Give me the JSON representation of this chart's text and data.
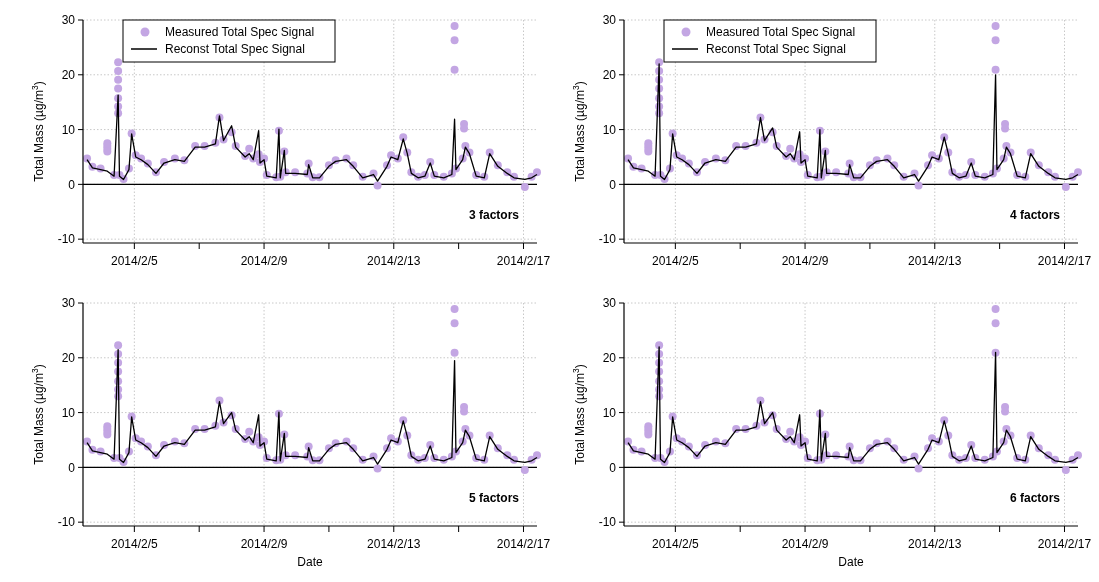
{
  "chart_data": [
    {
      "type": "line",
      "ylabel": "Total Mass (µg/m$^{3}$)",
      "annotations": [
        "3 factors"
      ],
      "legend": "top left",
      "grid": true,
      "xlim": [
        "2014-02-03T10:00",
        "2014-02-17T10:00"
      ],
      "ylim": [
        -10.7,
        30
      ],
      "yticks": [
        -10,
        0,
        10,
        20,
        30
      ],
      "xticks": [
        {
          "value": "2014-02-05",
          "label": "2014/2/5"
        },
        {
          "value": "2014-02-07",
          "label": null
        },
        {
          "value": "2014-02-09",
          "label": "2014/2/9"
        },
        {
          "value": "2014-02-11",
          "label": null
        },
        {
          "value": "2014-02-13",
          "label": "2014/2/13"
        },
        {
          "value": "2014-02-15",
          "label": null
        },
        {
          "value": "2014-02-17",
          "label": "2014/2/17"
        }
      ],
      "ref_lines": [
        {
          "axis": "y",
          "value": 0,
          "color": "#000000"
        }
      ],
      "x": [
        "2014-02-03T13:00",
        "2014-02-03T17:00",
        "2014-02-03T23:00",
        "2014-02-04T04:00",
        "2014-02-04T09:00",
        "2014-02-04T12:00",
        "2014-02-04T13:00",
        "2014-02-04T16:00",
        "2014-02-04T20:00",
        "2014-02-04T22:00",
        "2014-02-05T01:00",
        "2014-02-05T05:00",
        "2014-02-05T10:00",
        "2014-02-05T16:00",
        "2014-02-05T22:00",
        "2014-02-06T06:00",
        "2014-02-06T13:00",
        "2014-02-06T21:00",
        "2014-02-07T04:00",
        "2014-02-07T12:00",
        "2014-02-07T15:00",
        "2014-02-07T18:00",
        "2014-02-08T00:00",
        "2014-02-08T03:00",
        "2014-02-08T10:00",
        "2014-02-08T13:00",
        "2014-02-08T16:00",
        "2014-02-08T20:00",
        "2014-02-08T21:00",
        "2014-02-09T00:00",
        "2014-02-09T02:00",
        "2014-02-09T09:00",
        "2014-02-09T11:00",
        "2014-02-09T12:00",
        "2014-02-09T15:00",
        "2014-02-09T16:00",
        "2014-02-09T23:00",
        "2014-02-10T08:00",
        "2014-02-10T09:00",
        "2014-02-10T12:00",
        "2014-02-10T17:00",
        "2014-02-11T00:00",
        "2014-02-11T05:00",
        "2014-02-11T13:00",
        "2014-02-11T18:00",
        "2014-02-12T01:00",
        "2014-02-12T09:00",
        "2014-02-12T12:00",
        "2014-02-12T19:00",
        "2014-02-12T22:00",
        "2014-02-13T03:00",
        "2014-02-13T07:00",
        "2014-02-13T10:00",
        "2014-02-13T13:00",
        "2014-02-13T18:00",
        "2014-02-13T23:00",
        "2014-02-14T03:00",
        "2014-02-14T06:00",
        "2014-02-14T13:00",
        "2014-02-14T19:00",
        "2014-02-14T21:00",
        "2014-02-14T22:00",
        "2014-02-15T03:00",
        "2014-02-15T05:00",
        "2014-02-15T08:00",
        "2014-02-15T13:00",
        "2014-02-15T19:00",
        "2014-02-15T23:00",
        "2014-02-16T05:00",
        "2014-02-16T12:00",
        "2014-02-16T17:00",
        "2014-02-17T01:00",
        "2014-02-17T06:00",
        "2014-02-17T10:00"
      ],
      "series": [
        {
          "name": "Measured Total Spec Signal",
          "type": "scatter",
          "marker": "circle",
          "color": "#c3a6e3",
          "x": [
            "2014-02-03T13:00",
            "2014-02-03T17:00",
            "2014-02-03T23:00",
            "2014-02-04T04:00",
            "2014-02-04T09:00",
            "2014-02-04T12:00",
            "2014-02-04T13:00",
            "2014-02-04T16:00",
            "2014-02-04T20:00",
            "2014-02-04T22:00",
            "2014-02-05T01:00",
            "2014-02-05T05:00",
            "2014-02-05T10:00",
            "2014-02-05T16:00",
            "2014-02-05T22:00",
            "2014-02-06T06:00",
            "2014-02-06T13:00",
            "2014-02-06T21:00",
            "2014-02-07T04:00",
            "2014-02-07T12:00",
            "2014-02-07T15:00",
            "2014-02-07T18:00",
            "2014-02-08T00:00",
            "2014-02-08T03:00",
            "2014-02-08T10:00",
            "2014-02-08T13:00",
            "2014-02-08T16:00",
            "2014-02-08T20:00",
            "2014-02-08T21:00",
            "2014-02-09T00:00",
            "2014-02-09T02:00",
            "2014-02-09T09:00",
            "2014-02-09T11:00",
            "2014-02-09T12:00",
            "2014-02-09T15:00",
            "2014-02-09T16:00",
            "2014-02-09T23:00",
            "2014-02-10T08:00",
            "2014-02-10T09:00",
            "2014-02-10T12:00",
            "2014-02-10T17:00",
            "2014-02-11T00:00",
            "2014-02-11T05:00",
            "2014-02-11T13:00",
            "2014-02-11T18:00",
            "2014-02-12T01:00",
            "2014-02-12T09:00",
            "2014-02-12T12:00",
            "2014-02-12T19:00",
            "2014-02-12T22:00",
            "2014-02-13T03:00",
            "2014-02-13T07:00",
            "2014-02-13T10:00",
            "2014-02-13T13:00",
            "2014-02-13T18:00",
            "2014-02-13T23:00",
            "2014-02-14T03:00",
            "2014-02-14T06:00",
            "2014-02-14T13:00",
            "2014-02-14T19:00",
            "2014-02-14T21:00",
            "2014-02-14T22:00",
            "2014-02-15T03:00",
            "2014-02-15T05:00",
            "2014-02-15T08:00",
            "2014-02-15T13:00",
            "2014-02-15T19:00",
            "2014-02-15T23:00",
            "2014-02-16T05:00",
            "2014-02-16T12:00",
            "2014-02-16T17:00",
            "2014-02-17T01:00",
            "2014-02-17T06:00",
            "2014-02-17T10:00",
            "2014-02-04T12:00",
            "2014-02-04T12:00",
            "2014-02-04T12:00",
            "2014-02-04T12:00",
            "2014-02-04T12:00",
            "2014-02-04T12:00",
            "2014-02-04T04:00",
            "2014-02-04T04:00",
            "2014-02-04T04:00",
            "2014-02-14T21:00",
            "2014-02-14T21:00",
            "2014-02-15T04:00",
            "2014-02-15T04:00"
          ],
          "values": [
            4.7,
            3.2,
            2.9,
            7.5,
            1.7,
            22.3,
            1.7,
            1.0,
            2.9,
            9.3,
            5.3,
            4.7,
            3.8,
            2.2,
            4.1,
            4.7,
            4.4,
            7.0,
            7.0,
            7.6,
            12.2,
            8.2,
            9.5,
            7.0,
            5.2,
            6.5,
            4.7,
            5.5,
            4.1,
            4.7,
            1.7,
            1.3,
            9.8,
            1.4,
            6.0,
            2.2,
            2.2,
            2.0,
            3.8,
            1.3,
            1.3,
            3.5,
            4.4,
            4.7,
            3.5,
            1.4,
            2.0,
            -0.2,
            3.5,
            5.3,
            4.7,
            8.6,
            5.8,
            2.2,
            1.4,
            1.7,
            4.1,
            1.7,
            1.4,
            2.0,
            28.9,
            2.9,
            4.7,
            7.0,
            5.8,
            1.7,
            1.4,
            5.8,
            3.5,
            2.2,
            1.4,
            -0.5,
            1.4,
            2.2,
            20.7,
            19.1,
            17.5,
            15.7,
            14.2,
            13,
            7,
            6.5,
            6,
            26.3,
            20.9,
            11,
            10.2
          ]
        },
        {
          "name": "Reconst Total Spec Signal",
          "line_style": "solid",
          "color": "#000000",
          "values": [
            4.5,
            3,
            2.7,
            2.4,
            1.5,
            16.3,
            1.5,
            0.9,
            2.7,
            9.2,
            5,
            4.5,
            3.6,
            2,
            3.9,
            4.5,
            4.2,
            6.8,
            6.8,
            7.4,
            12.5,
            8,
            10.7,
            6.8,
            5,
            5.6,
            4.5,
            9.8,
            3.9,
            4.5,
            1.5,
            1.2,
            10.1,
            1.2,
            6.2,
            2,
            2,
            1.8,
            3.6,
            1.2,
            1.2,
            3.3,
            4.2,
            4.5,
            3.3,
            1.2,
            1.8,
            0.6,
            3.3,
            5,
            4.5,
            8.3,
            5.6,
            2,
            1.2,
            1.5,
            3.9,
            1.5,
            1.2,
            1.8,
            11.9,
            2.7,
            4.5,
            6.8,
            5.6,
            1.5,
            1.2,
            5.6,
            3.3,
            2,
            1.2,
            0.9,
            1.2,
            1.8
          ]
        }
      ]
    },
    {
      "type": "line",
      "ylabel": "Total Mass (µg/m$^{3}$)",
      "annotations": [
        "4 factors"
      ],
      "legend": "top left",
      "grid": true,
      "xlim": [
        "2014-02-03T10:00",
        "2014-02-17T10:00"
      ],
      "ylim": [
        -10.7,
        30
      ],
      "yticks": [
        -10,
        0,
        10,
        20,
        30
      ],
      "xticks": [
        {
          "value": "2014-02-05",
          "label": "2014/2/5"
        },
        {
          "value": "2014-02-07",
          "label": null
        },
        {
          "value": "2014-02-09",
          "label": "2014/2/9"
        },
        {
          "value": "2014-02-11",
          "label": null
        },
        {
          "value": "2014-02-13",
          "label": "2014/2/13"
        },
        {
          "value": "2014-02-15",
          "label": null
        },
        {
          "value": "2014-02-17",
          "label": "2014/2/17"
        }
      ],
      "ref_lines": [
        {
          "axis": "y",
          "value": 0,
          "color": "#000000"
        }
      ],
      "x": [
        "2014-02-03T13:00",
        "2014-02-03T17:00",
        "2014-02-03T23:00",
        "2014-02-04T04:00",
        "2014-02-04T09:00",
        "2014-02-04T12:00",
        "2014-02-04T13:00",
        "2014-02-04T16:00",
        "2014-02-04T20:00",
        "2014-02-04T22:00",
        "2014-02-05T01:00",
        "2014-02-05T05:00",
        "2014-02-05T10:00",
        "2014-02-05T16:00",
        "2014-02-05T22:00",
        "2014-02-06T06:00",
        "2014-02-06T13:00",
        "2014-02-06T21:00",
        "2014-02-07T04:00",
        "2014-02-07T12:00",
        "2014-02-07T15:00",
        "2014-02-07T18:00",
        "2014-02-08T00:00",
        "2014-02-08T03:00",
        "2014-02-08T10:00",
        "2014-02-08T13:00",
        "2014-02-08T16:00",
        "2014-02-08T20:00",
        "2014-02-08T21:00",
        "2014-02-09T00:00",
        "2014-02-09T02:00",
        "2014-02-09T09:00",
        "2014-02-09T11:00",
        "2014-02-09T12:00",
        "2014-02-09T15:00",
        "2014-02-09T16:00",
        "2014-02-09T23:00",
        "2014-02-10T08:00",
        "2014-02-10T09:00",
        "2014-02-10T12:00",
        "2014-02-10T17:00",
        "2014-02-11T00:00",
        "2014-02-11T05:00",
        "2014-02-11T13:00",
        "2014-02-11T18:00",
        "2014-02-12T01:00",
        "2014-02-12T09:00",
        "2014-02-12T12:00",
        "2014-02-12T19:00",
        "2014-02-12T22:00",
        "2014-02-13T03:00",
        "2014-02-13T07:00",
        "2014-02-13T10:00",
        "2014-02-13T13:00",
        "2014-02-13T18:00",
        "2014-02-13T23:00",
        "2014-02-14T03:00",
        "2014-02-14T06:00",
        "2014-02-14T13:00",
        "2014-02-14T19:00",
        "2014-02-14T21:00",
        "2014-02-14T22:00",
        "2014-02-15T03:00",
        "2014-02-15T05:00",
        "2014-02-15T08:00",
        "2014-02-15T13:00",
        "2014-02-15T19:00",
        "2014-02-15T23:00",
        "2014-02-16T05:00",
        "2014-02-16T12:00",
        "2014-02-16T17:00",
        "2014-02-17T01:00",
        "2014-02-17T06:00",
        "2014-02-17T10:00"
      ],
      "series": [
        {
          "name": "Measured Total Spec Signal",
          "type": "scatter",
          "marker": "circle",
          "color": "#c3a6e3",
          "x": [
            "2014-02-03T13:00",
            "2014-02-03T17:00",
            "2014-02-03T23:00",
            "2014-02-04T04:00",
            "2014-02-04T09:00",
            "2014-02-04T12:00",
            "2014-02-04T13:00",
            "2014-02-04T16:00",
            "2014-02-04T20:00",
            "2014-02-04T22:00",
            "2014-02-05T01:00",
            "2014-02-05T05:00",
            "2014-02-05T10:00",
            "2014-02-05T16:00",
            "2014-02-05T22:00",
            "2014-02-06T06:00",
            "2014-02-06T13:00",
            "2014-02-06T21:00",
            "2014-02-07T04:00",
            "2014-02-07T12:00",
            "2014-02-07T15:00",
            "2014-02-07T18:00",
            "2014-02-08T00:00",
            "2014-02-08T03:00",
            "2014-02-08T10:00",
            "2014-02-08T13:00",
            "2014-02-08T16:00",
            "2014-02-08T20:00",
            "2014-02-08T21:00",
            "2014-02-09T00:00",
            "2014-02-09T02:00",
            "2014-02-09T09:00",
            "2014-02-09T11:00",
            "2014-02-09T12:00",
            "2014-02-09T15:00",
            "2014-02-09T16:00",
            "2014-02-09T23:00",
            "2014-02-10T08:00",
            "2014-02-10T09:00",
            "2014-02-10T12:00",
            "2014-02-10T17:00",
            "2014-02-11T00:00",
            "2014-02-11T05:00",
            "2014-02-11T13:00",
            "2014-02-11T18:00",
            "2014-02-12T01:00",
            "2014-02-12T09:00",
            "2014-02-12T12:00",
            "2014-02-12T19:00",
            "2014-02-12T22:00",
            "2014-02-13T03:00",
            "2014-02-13T07:00",
            "2014-02-13T10:00",
            "2014-02-13T13:00",
            "2014-02-13T18:00",
            "2014-02-13T23:00",
            "2014-02-14T03:00",
            "2014-02-14T06:00",
            "2014-02-14T13:00",
            "2014-02-14T19:00",
            "2014-02-14T21:00",
            "2014-02-14T22:00",
            "2014-02-15T03:00",
            "2014-02-15T05:00",
            "2014-02-15T08:00",
            "2014-02-15T13:00",
            "2014-02-15T19:00",
            "2014-02-15T23:00",
            "2014-02-16T05:00",
            "2014-02-16T12:00",
            "2014-02-16T17:00",
            "2014-02-17T01:00",
            "2014-02-17T06:00",
            "2014-02-17T10:00",
            "2014-02-04T12:00",
            "2014-02-04T12:00",
            "2014-02-04T12:00",
            "2014-02-04T12:00",
            "2014-02-04T12:00",
            "2014-02-04T12:00",
            "2014-02-04T04:00",
            "2014-02-04T04:00",
            "2014-02-04T04:00",
            "2014-02-14T21:00",
            "2014-02-14T21:00",
            "2014-02-15T04:00",
            "2014-02-15T04:00"
          ],
          "values": [
            4.7,
            3.2,
            2.9,
            7.5,
            1.7,
            22.3,
            1.7,
            1.0,
            2.9,
            9.3,
            5.3,
            4.7,
            3.8,
            2.2,
            4.1,
            4.7,
            4.4,
            7.0,
            7.0,
            7.6,
            12.2,
            8.2,
            9.5,
            7.0,
            5.2,
            6.5,
            4.7,
            5.5,
            4.1,
            4.7,
            1.7,
            1.3,
            9.8,
            1.4,
            6.0,
            2.2,
            2.2,
            2.0,
            3.8,
            1.3,
            1.3,
            3.5,
            4.4,
            4.7,
            3.5,
            1.4,
            2.0,
            -0.2,
            3.5,
            5.3,
            4.7,
            8.6,
            5.8,
            2.2,
            1.4,
            1.7,
            4.1,
            1.7,
            1.4,
            2.0,
            28.9,
            2.9,
            4.7,
            7.0,
            5.8,
            1.7,
            1.4,
            5.8,
            3.5,
            2.2,
            1.4,
            -0.5,
            1.4,
            2.2,
            20.7,
            19.1,
            17.5,
            15.7,
            14.2,
            13,
            7,
            6.5,
            6,
            26.3,
            20.9,
            11,
            10.2
          ]
        },
        {
          "name": "Reconst Total Spec Signal",
          "line_style": "solid",
          "color": "#000000",
          "values": [
            4.5,
            3,
            2.7,
            2.4,
            1.5,
            22,
            1.5,
            0.9,
            2.7,
            9.2,
            5,
            4.5,
            3.6,
            2,
            3.9,
            4.5,
            4.2,
            6.8,
            6.8,
            7.4,
            12.2,
            8,
            10.3,
            6.8,
            5,
            5.6,
            4.5,
            9.6,
            3.9,
            4.5,
            1.5,
            1.2,
            10,
            1.2,
            6.2,
            2,
            2,
            1.8,
            3.6,
            1.2,
            1.2,
            3.3,
            4.2,
            4.5,
            3.3,
            1.2,
            1.8,
            0.6,
            3.3,
            5,
            4.5,
            8.6,
            5.6,
            2,
            1.2,
            1.5,
            3.9,
            1.5,
            1.2,
            1.8,
            20,
            2.7,
            4.5,
            6.8,
            5.6,
            1.5,
            1.2,
            5.6,
            3.3,
            2,
            1.2,
            0.9,
            1.2,
            1.8
          ]
        }
      ]
    },
    {
      "type": "line",
      "ylabel": "Total Mass (µg/m$^{3}$)",
      "xlabel": "Date",
      "annotations": [
        "5 factors"
      ],
      "grid": true,
      "xlim": [
        "2014-02-03T10:00",
        "2014-02-17T10:00"
      ],
      "ylim": [
        -10.7,
        30
      ],
      "yticks": [
        -10,
        0,
        10,
        20,
        30
      ],
      "xticks": [
        {
          "value": "2014-02-05",
          "label": "2014/2/5"
        },
        {
          "value": "2014-02-07",
          "label": null
        },
        {
          "value": "2014-02-09",
          "label": "2014/2/9"
        },
        {
          "value": "2014-02-11",
          "label": null
        },
        {
          "value": "2014-02-13",
          "label": "2014/2/13"
        },
        {
          "value": "2014-02-15",
          "label": null
        },
        {
          "value": "2014-02-17",
          "label": "2014/2/17"
        }
      ],
      "ref_lines": [
        {
          "axis": "y",
          "value": 0,
          "color": "#000000"
        }
      ],
      "x": [
        "2014-02-03T13:00",
        "2014-02-03T17:00",
        "2014-02-03T23:00",
        "2014-02-04T04:00",
        "2014-02-04T09:00",
        "2014-02-04T12:00",
        "2014-02-04T13:00",
        "2014-02-04T16:00",
        "2014-02-04T20:00",
        "2014-02-04T22:00",
        "2014-02-05T01:00",
        "2014-02-05T05:00",
        "2014-02-05T10:00",
        "2014-02-05T16:00",
        "2014-02-05T22:00",
        "2014-02-06T06:00",
        "2014-02-06T13:00",
        "2014-02-06T21:00",
        "2014-02-07T04:00",
        "2014-02-07T12:00",
        "2014-02-07T15:00",
        "2014-02-07T18:00",
        "2014-02-08T00:00",
        "2014-02-08T03:00",
        "2014-02-08T10:00",
        "2014-02-08T13:00",
        "2014-02-08T16:00",
        "2014-02-08T20:00",
        "2014-02-08T21:00",
        "2014-02-09T00:00",
        "2014-02-09T02:00",
        "2014-02-09T09:00",
        "2014-02-09T11:00",
        "2014-02-09T12:00",
        "2014-02-09T15:00",
        "2014-02-09T16:00",
        "2014-02-09T23:00",
        "2014-02-10T08:00",
        "2014-02-10T09:00",
        "2014-02-10T12:00",
        "2014-02-10T17:00",
        "2014-02-11T00:00",
        "2014-02-11T05:00",
        "2014-02-11T13:00",
        "2014-02-11T18:00",
        "2014-02-12T01:00",
        "2014-02-12T09:00",
        "2014-02-12T12:00",
        "2014-02-12T19:00",
        "2014-02-12T22:00",
        "2014-02-13T03:00",
        "2014-02-13T07:00",
        "2014-02-13T10:00",
        "2014-02-13T13:00",
        "2014-02-13T18:00",
        "2014-02-13T23:00",
        "2014-02-14T03:00",
        "2014-02-14T06:00",
        "2014-02-14T13:00",
        "2014-02-14T19:00",
        "2014-02-14T21:00",
        "2014-02-14T22:00",
        "2014-02-15T03:00",
        "2014-02-15T05:00",
        "2014-02-15T08:00",
        "2014-02-15T13:00",
        "2014-02-15T19:00",
        "2014-02-15T23:00",
        "2014-02-16T05:00",
        "2014-02-16T12:00",
        "2014-02-16T17:00",
        "2014-02-17T01:00",
        "2014-02-17T06:00",
        "2014-02-17T10:00"
      ],
      "series": [
        {
          "type": "scatter",
          "marker": "circle",
          "color": "#c3a6e3",
          "x": [
            "2014-02-03T13:00",
            "2014-02-03T17:00",
            "2014-02-03T23:00",
            "2014-02-04T04:00",
            "2014-02-04T09:00",
            "2014-02-04T12:00",
            "2014-02-04T13:00",
            "2014-02-04T16:00",
            "2014-02-04T20:00",
            "2014-02-04T22:00",
            "2014-02-05T01:00",
            "2014-02-05T05:00",
            "2014-02-05T10:00",
            "2014-02-05T16:00",
            "2014-02-05T22:00",
            "2014-02-06T06:00",
            "2014-02-06T13:00",
            "2014-02-06T21:00",
            "2014-02-07T04:00",
            "2014-02-07T12:00",
            "2014-02-07T15:00",
            "2014-02-07T18:00",
            "2014-02-08T00:00",
            "2014-02-08T03:00",
            "2014-02-08T10:00",
            "2014-02-08T13:00",
            "2014-02-08T16:00",
            "2014-02-08T20:00",
            "2014-02-08T21:00",
            "2014-02-09T00:00",
            "2014-02-09T02:00",
            "2014-02-09T09:00",
            "2014-02-09T11:00",
            "2014-02-09T12:00",
            "2014-02-09T15:00",
            "2014-02-09T16:00",
            "2014-02-09T23:00",
            "2014-02-10T08:00",
            "2014-02-10T09:00",
            "2014-02-10T12:00",
            "2014-02-10T17:00",
            "2014-02-11T00:00",
            "2014-02-11T05:00",
            "2014-02-11T13:00",
            "2014-02-11T18:00",
            "2014-02-12T01:00",
            "2014-02-12T09:00",
            "2014-02-12T12:00",
            "2014-02-12T19:00",
            "2014-02-12T22:00",
            "2014-02-13T03:00",
            "2014-02-13T07:00",
            "2014-02-13T10:00",
            "2014-02-13T13:00",
            "2014-02-13T18:00",
            "2014-02-13T23:00",
            "2014-02-14T03:00",
            "2014-02-14T06:00",
            "2014-02-14T13:00",
            "2014-02-14T19:00",
            "2014-02-14T21:00",
            "2014-02-14T22:00",
            "2014-02-15T03:00",
            "2014-02-15T05:00",
            "2014-02-15T08:00",
            "2014-02-15T13:00",
            "2014-02-15T19:00",
            "2014-02-15T23:00",
            "2014-02-16T05:00",
            "2014-02-16T12:00",
            "2014-02-16T17:00",
            "2014-02-17T01:00",
            "2014-02-17T06:00",
            "2014-02-17T10:00",
            "2014-02-04T12:00",
            "2014-02-04T12:00",
            "2014-02-04T12:00",
            "2014-02-04T12:00",
            "2014-02-04T12:00",
            "2014-02-04T12:00",
            "2014-02-04T04:00",
            "2014-02-04T04:00",
            "2014-02-04T04:00",
            "2014-02-14T21:00",
            "2014-02-14T21:00",
            "2014-02-15T04:00",
            "2014-02-15T04:00"
          ],
          "values": [
            4.7,
            3.2,
            2.9,
            7.5,
            1.7,
            22.3,
            1.7,
            1.0,
            2.9,
            9.3,
            5.3,
            4.7,
            3.8,
            2.2,
            4.1,
            4.7,
            4.4,
            7.0,
            7.0,
            7.6,
            12.2,
            8.2,
            9.5,
            7.0,
            5.2,
            6.5,
            4.7,
            5.5,
            4.1,
            4.7,
            1.7,
            1.3,
            9.8,
            1.4,
            6.0,
            2.2,
            2.2,
            2.0,
            3.8,
            1.3,
            1.3,
            3.5,
            4.4,
            4.7,
            3.5,
            1.4,
            2.0,
            -0.2,
            3.5,
            5.3,
            4.7,
            8.6,
            5.8,
            2.2,
            1.4,
            1.7,
            4.1,
            1.7,
            1.4,
            2.0,
            28.9,
            2.9,
            4.7,
            7.0,
            5.8,
            1.7,
            1.4,
            5.8,
            3.5,
            2.2,
            1.4,
            -0.5,
            1.4,
            2.2,
            20.7,
            19.1,
            17.5,
            15.7,
            14.2,
            13,
            7,
            6.5,
            6,
            26.3,
            20.9,
            11,
            10.2
          ]
        },
        {
          "line_style": "solid",
          "color": "#000000",
          "values": [
            4.5,
            3,
            2.7,
            2.4,
            1.5,
            21.5,
            1.5,
            0.9,
            2.7,
            9.2,
            5,
            4.5,
            3.6,
            2,
            3.9,
            4.5,
            4.2,
            6.8,
            6.8,
            7.4,
            12,
            8,
            10,
            6.8,
            5,
            5.6,
            4.5,
            9.6,
            3.9,
            4.5,
            1.5,
            1.2,
            10.1,
            1.2,
            6.2,
            2,
            2,
            1.8,
            3.6,
            1.2,
            1.2,
            3.3,
            4.2,
            4.5,
            3.3,
            1.2,
            1.8,
            0.6,
            3.3,
            5,
            4.5,
            8.5,
            5.6,
            2,
            1.2,
            1.5,
            3.9,
            1.5,
            1.2,
            1.8,
            19.5,
            2.7,
            4.5,
            6.8,
            5.6,
            1.5,
            1.2,
            5.6,
            3.3,
            2,
            1.2,
            0.9,
            1.2,
            1.8
          ]
        }
      ]
    },
    {
      "type": "line",
      "ylabel": "Total Mass (µg/m$^{3}$)",
      "xlabel": "Date",
      "annotations": [
        "6 factors"
      ],
      "grid": true,
      "xlim": [
        "2014-02-03T10:00",
        "2014-02-17T10:00"
      ],
      "ylim": [
        -10.7,
        30
      ],
      "yticks": [
        -10,
        0,
        10,
        20,
        30
      ],
      "xticks": [
        {
          "value": "2014-02-05",
          "label": "2014/2/5"
        },
        {
          "value": "2014-02-07",
          "label": null
        },
        {
          "value": "2014-02-09",
          "label": "2014/2/9"
        },
        {
          "value": "2014-02-11",
          "label": null
        },
        {
          "value": "2014-02-13",
          "label": "2014/2/13"
        },
        {
          "value": "2014-02-15",
          "label": null
        },
        {
          "value": "2014-02-17",
          "label": "2014/2/17"
        }
      ],
      "ref_lines": [
        {
          "axis": "y",
          "value": 0,
          "color": "#000000"
        }
      ],
      "x": [
        "2014-02-03T13:00",
        "2014-02-03T17:00",
        "2014-02-03T23:00",
        "2014-02-04T04:00",
        "2014-02-04T09:00",
        "2014-02-04T12:00",
        "2014-02-04T13:00",
        "2014-02-04T16:00",
        "2014-02-04T20:00",
        "2014-02-04T22:00",
        "2014-02-05T01:00",
        "2014-02-05T05:00",
        "2014-02-05T10:00",
        "2014-02-05T16:00",
        "2014-02-05T22:00",
        "2014-02-06T06:00",
        "2014-02-06T13:00",
        "2014-02-06T21:00",
        "2014-02-07T04:00",
        "2014-02-07T12:00",
        "2014-02-07T15:00",
        "2014-02-07T18:00",
        "2014-02-08T00:00",
        "2014-02-08T03:00",
        "2014-02-08T10:00",
        "2014-02-08T13:00",
        "2014-02-08T16:00",
        "2014-02-08T20:00",
        "2014-02-08T21:00",
        "2014-02-09T00:00",
        "2014-02-09T02:00",
        "2014-02-09T09:00",
        "2014-02-09T11:00",
        "2014-02-09T12:00",
        "2014-02-09T15:00",
        "2014-02-09T16:00",
        "2014-02-09T23:00",
        "2014-02-10T08:00",
        "2014-02-10T09:00",
        "2014-02-10T12:00",
        "2014-02-10T17:00",
        "2014-02-11T00:00",
        "2014-02-11T05:00",
        "2014-02-11T13:00",
        "2014-02-11T18:00",
        "2014-02-12T01:00",
        "2014-02-12T09:00",
        "2014-02-12T12:00",
        "2014-02-12T19:00",
        "2014-02-12T22:00",
        "2014-02-13T03:00",
        "2014-02-13T07:00",
        "2014-02-13T10:00",
        "2014-02-13T13:00",
        "2014-02-13T18:00",
        "2014-02-13T23:00",
        "2014-02-14T03:00",
        "2014-02-14T06:00",
        "2014-02-14T13:00",
        "2014-02-14T19:00",
        "2014-02-14T21:00",
        "2014-02-14T22:00",
        "2014-02-15T03:00",
        "2014-02-15T05:00",
        "2014-02-15T08:00",
        "2014-02-15T13:00",
        "2014-02-15T19:00",
        "2014-02-15T23:00",
        "2014-02-16T05:00",
        "2014-02-16T12:00",
        "2014-02-16T17:00",
        "2014-02-17T01:00",
        "2014-02-17T06:00",
        "2014-02-17T10:00"
      ],
      "series": [
        {
          "type": "scatter",
          "marker": "circle",
          "color": "#c3a6e3",
          "x": [
            "2014-02-03T13:00",
            "2014-02-03T17:00",
            "2014-02-03T23:00",
            "2014-02-04T04:00",
            "2014-02-04T09:00",
            "2014-02-04T12:00",
            "2014-02-04T13:00",
            "2014-02-04T16:00",
            "2014-02-04T20:00",
            "2014-02-04T22:00",
            "2014-02-05T01:00",
            "2014-02-05T05:00",
            "2014-02-05T10:00",
            "2014-02-05T16:00",
            "2014-02-05T22:00",
            "2014-02-06T06:00",
            "2014-02-06T13:00",
            "2014-02-06T21:00",
            "2014-02-07T04:00",
            "2014-02-07T12:00",
            "2014-02-07T15:00",
            "2014-02-07T18:00",
            "2014-02-08T00:00",
            "2014-02-08T03:00",
            "2014-02-08T10:00",
            "2014-02-08T13:00",
            "2014-02-08T16:00",
            "2014-02-08T20:00",
            "2014-02-08T21:00",
            "2014-02-09T00:00",
            "2014-02-09T02:00",
            "2014-02-09T09:00",
            "2014-02-09T11:00",
            "2014-02-09T12:00",
            "2014-02-09T15:00",
            "2014-02-09T16:00",
            "2014-02-09T23:00",
            "2014-02-10T08:00",
            "2014-02-10T09:00",
            "2014-02-10T12:00",
            "2014-02-10T17:00",
            "2014-02-11T00:00",
            "2014-02-11T05:00",
            "2014-02-11T13:00",
            "2014-02-11T18:00",
            "2014-02-12T01:00",
            "2014-02-12T09:00",
            "2014-02-12T12:00",
            "2014-02-12T19:00",
            "2014-02-12T22:00",
            "2014-02-13T03:00",
            "2014-02-13T07:00",
            "2014-02-13T10:00",
            "2014-02-13T13:00",
            "2014-02-13T18:00",
            "2014-02-13T23:00",
            "2014-02-14T03:00",
            "2014-02-14T06:00",
            "2014-02-14T13:00",
            "2014-02-14T19:00",
            "2014-02-14T21:00",
            "2014-02-14T22:00",
            "2014-02-15T03:00",
            "2014-02-15T05:00",
            "2014-02-15T08:00",
            "2014-02-15T13:00",
            "2014-02-15T19:00",
            "2014-02-15T23:00",
            "2014-02-16T05:00",
            "2014-02-16T12:00",
            "2014-02-16T17:00",
            "2014-02-17T01:00",
            "2014-02-17T06:00",
            "2014-02-17T10:00",
            "2014-02-04T12:00",
            "2014-02-04T12:00",
            "2014-02-04T12:00",
            "2014-02-04T12:00",
            "2014-02-04T12:00",
            "2014-02-04T12:00",
            "2014-02-04T04:00",
            "2014-02-04T04:00",
            "2014-02-04T04:00",
            "2014-02-14T21:00",
            "2014-02-14T21:00",
            "2014-02-15T04:00",
            "2014-02-15T04:00"
          ],
          "values": [
            4.7,
            3.2,
            2.9,
            7.5,
            1.7,
            22.3,
            1.7,
            1.0,
            2.9,
            9.3,
            5.3,
            4.7,
            3.8,
            2.2,
            4.1,
            4.7,
            4.4,
            7.0,
            7.0,
            7.6,
            12.2,
            8.2,
            9.5,
            7.0,
            5.2,
            6.5,
            4.7,
            5.5,
            4.1,
            4.7,
            1.7,
            1.3,
            9.8,
            1.4,
            6.0,
            2.2,
            2.2,
            2.0,
            3.8,
            1.3,
            1.3,
            3.5,
            4.4,
            4.7,
            3.5,
            1.4,
            2.0,
            -0.2,
            3.5,
            5.3,
            4.7,
            8.6,
            5.8,
            2.2,
            1.4,
            1.7,
            4.1,
            1.7,
            1.4,
            2.0,
            28.9,
            2.9,
            4.7,
            7.0,
            5.8,
            1.7,
            1.4,
            5.8,
            3.5,
            2.2,
            1.4,
            -0.5,
            1.4,
            2.2,
            20.7,
            19.1,
            17.5,
            15.7,
            14.2,
            13,
            7,
            6.5,
            6,
            26.3,
            20.9,
            11,
            10.2
          ]
        },
        {
          "line_style": "solid",
          "color": "#000000",
          "values": [
            4.5,
            3,
            2.7,
            2.4,
            1.5,
            22,
            1.5,
            0.9,
            2.7,
            9.2,
            5,
            4.5,
            3.6,
            2,
            3.9,
            4.5,
            4.2,
            6.8,
            6.8,
            7.4,
            12,
            8,
            10,
            6.8,
            5,
            5.6,
            4.5,
            9.6,
            3.9,
            4.5,
            1.5,
            1.2,
            10.5,
            1.2,
            6.2,
            2,
            2,
            1.8,
            3.6,
            1.2,
            1.2,
            3.3,
            4.2,
            4.5,
            3.3,
            1.2,
            1.8,
            0.6,
            3.3,
            5,
            4.5,
            8.5,
            5.6,
            2,
            1.2,
            1.5,
            3.9,
            1.5,
            1.2,
            1.8,
            21,
            2.7,
            4.5,
            6.8,
            5.6,
            1.5,
            1.2,
            5.6,
            3.3,
            2,
            1.2,
            0.9,
            1.2,
            1.8
          ]
        }
      ]
    }
  ]
}
